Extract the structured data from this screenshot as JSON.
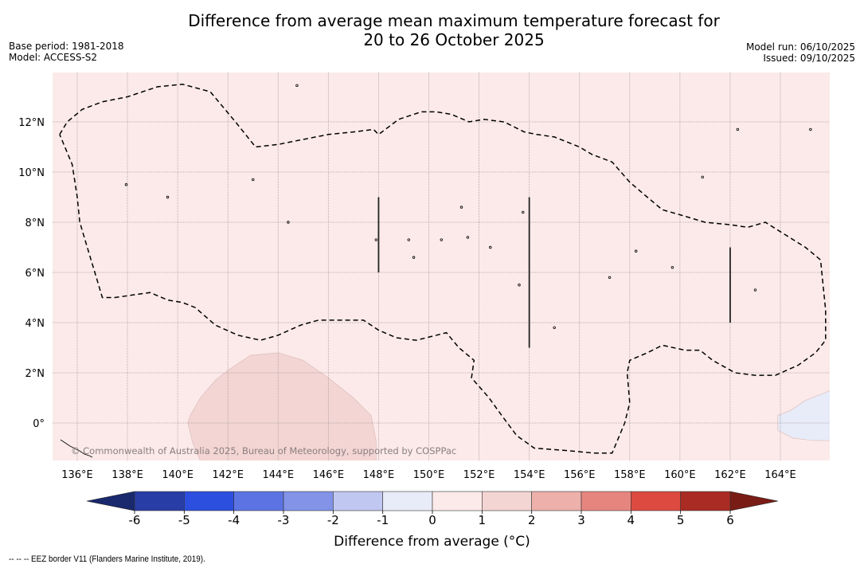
{
  "header": {
    "title_line1": "Difference from average mean maximum temperature forecast for",
    "title_line2": "20 to 26 October 2025",
    "base_period": "Base period: 1981-2018",
    "model": "Model: ACCESS-S2",
    "model_run": "Model run: 06/10/2025",
    "issued": "Issued: 09/10/2025"
  },
  "map": {
    "extent": {
      "lon_min": 135.0,
      "lon_max": 166.0,
      "lat_min": -1.5,
      "lat_max": 13.9
    },
    "background_color": "#fbeae9",
    "lon_ticks": [
      {
        "value": 136,
        "label": "136°E"
      },
      {
        "value": 138,
        "label": "138°E"
      },
      {
        "value": 140,
        "label": "140°E"
      },
      {
        "value": 142,
        "label": "142°E"
      },
      {
        "value": 144,
        "label": "144°E"
      },
      {
        "value": 146,
        "label": "146°E"
      },
      {
        "value": 148,
        "label": "148°E"
      },
      {
        "value": 150,
        "label": "150°E"
      },
      {
        "value": 152,
        "label": "152°E"
      },
      {
        "value": 154,
        "label": "154°E"
      },
      {
        "value": 156,
        "label": "156°E"
      },
      {
        "value": 158,
        "label": "158°E"
      },
      {
        "value": 160,
        "label": "160°E"
      },
      {
        "value": 162,
        "label": "162°E"
      },
      {
        "value": 164,
        "label": "164°E"
      }
    ],
    "lat_ticks": [
      {
        "value": 12,
        "label": "12°N"
      },
      {
        "value": 10,
        "label": "10°N"
      },
      {
        "value": 8,
        "label": "8°N"
      },
      {
        "value": 6,
        "label": "6°N"
      },
      {
        "value": 4,
        "label": "4°N"
      },
      {
        "value": 2,
        "label": "2°N"
      },
      {
        "value": 0,
        "label": "0°"
      }
    ],
    "copyright": "© Commonwealth of Australia 2025, Bureau of Meteorology, supported by COSPPac",
    "anomaly_regions": [
      {
        "name": "warm-anomaly-1-to-2",
        "range": "1 to 2",
        "color": "#f3d5d3",
        "points": [
          [
            140.5,
            0.3
          ],
          [
            140.9,
            1.0
          ],
          [
            141.5,
            1.7
          ],
          [
            142.0,
            2.1
          ],
          [
            142.9,
            2.7
          ],
          [
            144.0,
            2.8
          ],
          [
            145.0,
            2.5
          ],
          [
            146.0,
            1.8
          ],
          [
            147.0,
            1.0
          ],
          [
            147.7,
            0.3
          ],
          [
            147.9,
            -0.7
          ],
          [
            147.9,
            -1.5
          ],
          [
            140.9,
            -1.5
          ],
          [
            140.6,
            -0.8
          ],
          [
            140.4,
            0.0
          ]
        ]
      },
      {
        "name": "cool-anomaly-minus1-to-0",
        "range": "-1 to 0",
        "color": "#e8ebf8",
        "points": [
          [
            166.0,
            1.3
          ],
          [
            165.0,
            0.9
          ],
          [
            164.4,
            0.5
          ],
          [
            163.9,
            0.3
          ],
          [
            163.9,
            -0.3
          ],
          [
            164.5,
            -0.6
          ],
          [
            165.3,
            -0.7
          ],
          [
            166.0,
            -0.7
          ]
        ]
      }
    ],
    "eez_border": [
      [
        135.3,
        11.5
      ],
      [
        135.6,
        12.0
      ],
      [
        136.2,
        12.5
      ],
      [
        137.0,
        12.8
      ],
      [
        138.0,
        13.0
      ],
      [
        139.2,
        13.4
      ],
      [
        140.2,
        13.5
      ],
      [
        141.3,
        13.2
      ],
      [
        142.3,
        12.0
      ],
      [
        143.1,
        11.0
      ],
      [
        144.0,
        11.1
      ],
      [
        145.0,
        11.3
      ],
      [
        146.0,
        11.5
      ],
      [
        147.0,
        11.6
      ],
      [
        147.8,
        11.7
      ],
      [
        148.0,
        11.5
      ],
      [
        148.8,
        12.1
      ],
      [
        149.7,
        12.4
      ],
      [
        150.3,
        12.4
      ],
      [
        150.9,
        12.3
      ],
      [
        151.6,
        12.0
      ],
      [
        152.2,
        12.1
      ],
      [
        153.0,
        12.0
      ],
      [
        153.8,
        11.6
      ],
      [
        154.3,
        11.5
      ],
      [
        155.0,
        11.4
      ],
      [
        156.0,
        11.0
      ],
      [
        156.5,
        10.7
      ],
      [
        157.3,
        10.4
      ],
      [
        158.0,
        9.6
      ],
      [
        158.7,
        9.0
      ],
      [
        159.3,
        8.5
      ],
      [
        160.0,
        8.3
      ],
      [
        161.0,
        8.0
      ],
      [
        162.0,
        7.9
      ],
      [
        162.7,
        7.8
      ],
      [
        163.4,
        8.0
      ],
      [
        164.2,
        7.5
      ],
      [
        165.0,
        7.0
      ],
      [
        165.6,
        6.5
      ],
      [
        165.7,
        5.5
      ],
      [
        165.8,
        4.5
      ],
      [
        165.8,
        3.3
      ],
      [
        165.4,
        2.8
      ],
      [
        164.7,
        2.3
      ],
      [
        163.8,
        1.9
      ],
      [
        163.0,
        1.9
      ],
      [
        162.2,
        2.0
      ],
      [
        161.3,
        2.5
      ],
      [
        160.8,
        2.9
      ],
      [
        160.2,
        2.9
      ],
      [
        159.3,
        3.1
      ],
      [
        158.7,
        2.8
      ],
      [
        158.0,
        2.5
      ],
      [
        157.9,
        2.0
      ],
      [
        158.0,
        0.8
      ],
      [
        157.8,
        0.0
      ],
      [
        157.3,
        -1.2
      ],
      [
        156.6,
        -1.2
      ],
      [
        155.5,
        -1.1
      ],
      [
        154.2,
        -1.0
      ],
      [
        153.5,
        -0.5
      ],
      [
        152.9,
        0.3
      ],
      [
        152.4,
        1.0
      ],
      [
        151.7,
        1.8
      ],
      [
        151.8,
        2.5
      ],
      [
        151.2,
        3.0
      ],
      [
        150.7,
        3.6
      ],
      [
        150.3,
        3.5
      ],
      [
        149.5,
        3.3
      ],
      [
        148.7,
        3.4
      ],
      [
        148.0,
        3.7
      ],
      [
        147.4,
        4.1
      ],
      [
        146.6,
        4.1
      ],
      [
        145.6,
        4.1
      ],
      [
        144.9,
        3.9
      ],
      [
        144.0,
        3.5
      ],
      [
        143.3,
        3.3
      ],
      [
        142.4,
        3.5
      ],
      [
        141.5,
        3.9
      ],
      [
        140.7,
        4.6
      ],
      [
        140.2,
        4.8
      ],
      [
        139.6,
        4.9
      ],
      [
        138.9,
        5.2
      ],
      [
        137.5,
        5.0
      ],
      [
        137.0,
        5.0
      ],
      [
        136.7,
        6.0
      ],
      [
        136.4,
        7.0
      ],
      [
        136.1,
        8.0
      ],
      [
        136.0,
        9.0
      ],
      [
        135.8,
        10.3
      ],
      [
        135.3,
        11.5
      ]
    ],
    "eez_meridian_lines": [
      {
        "lon": 148,
        "lat_from": 9.0,
        "lat_to": 6.0
      },
      {
        "lon": 154,
        "lat_from": 9.0,
        "lat_to": 3.0
      },
      {
        "lon": 162,
        "lat_from": 7.0,
        "lat_to": 4.0
      }
    ],
    "islands": [
      [
        144.75,
        13.45
      ],
      [
        137.95,
        9.5
      ],
      [
        144.4,
        8.0
      ],
      [
        151.3,
        8.6
      ],
      [
        153.75,
        8.4
      ],
      [
        143.0,
        9.7
      ],
      [
        139.6,
        9.0
      ],
      [
        147.9,
        7.3
      ],
      [
        149.2,
        7.3
      ],
      [
        151.55,
        7.4
      ],
      [
        150.5,
        7.3
      ],
      [
        152.45,
        7.0
      ],
      [
        149.4,
        6.6
      ],
      [
        158.25,
        6.85
      ],
      [
        159.7,
        6.2
      ],
      [
        157.2,
        5.8
      ],
      [
        153.6,
        5.5
      ],
      [
        163.0,
        5.3
      ],
      [
        155.0,
        3.8
      ],
      [
        160.9,
        9.8
      ],
      [
        162.3,
        11.7
      ],
      [
        165.2,
        11.7
      ]
    ]
  },
  "colorbar": {
    "label": "Difference from average (°C)",
    "ticks": [
      "-6",
      "-5",
      "-4",
      "-3",
      "-2",
      "-1",
      "0",
      "1",
      "2",
      "3",
      "4",
      "5",
      "6"
    ],
    "under_color": "#1a286e",
    "over_color": "#7a1c16",
    "bins": [
      {
        "from": -6,
        "to": -5,
        "color": "#283da6"
      },
      {
        "from": -5,
        "to": -4,
        "color": "#2d4fdf"
      },
      {
        "from": -4,
        "to": -3,
        "color": "#5c74e3"
      },
      {
        "from": -3,
        "to": -2,
        "color": "#8293e8"
      },
      {
        "from": -2,
        "to": -1,
        "color": "#c0c8f2"
      },
      {
        "from": -1,
        "to": 0,
        "color": "#e8ebf8"
      },
      {
        "from": 0,
        "to": 1,
        "color": "#fbeae9"
      },
      {
        "from": 1,
        "to": 2,
        "color": "#f3d5d3"
      },
      {
        "from": 2,
        "to": 3,
        "color": "#edb0ab"
      },
      {
        "from": 3,
        "to": 4,
        "color": "#e6857e"
      },
      {
        "from": 4,
        "to": 5,
        "color": "#dc4a40"
      },
      {
        "from": 5,
        "to": 6,
        "color": "#a92b23"
      }
    ]
  },
  "footnote": "-- -- -- EEZ border V11 (Flanders Marine Institute, 2019)."
}
